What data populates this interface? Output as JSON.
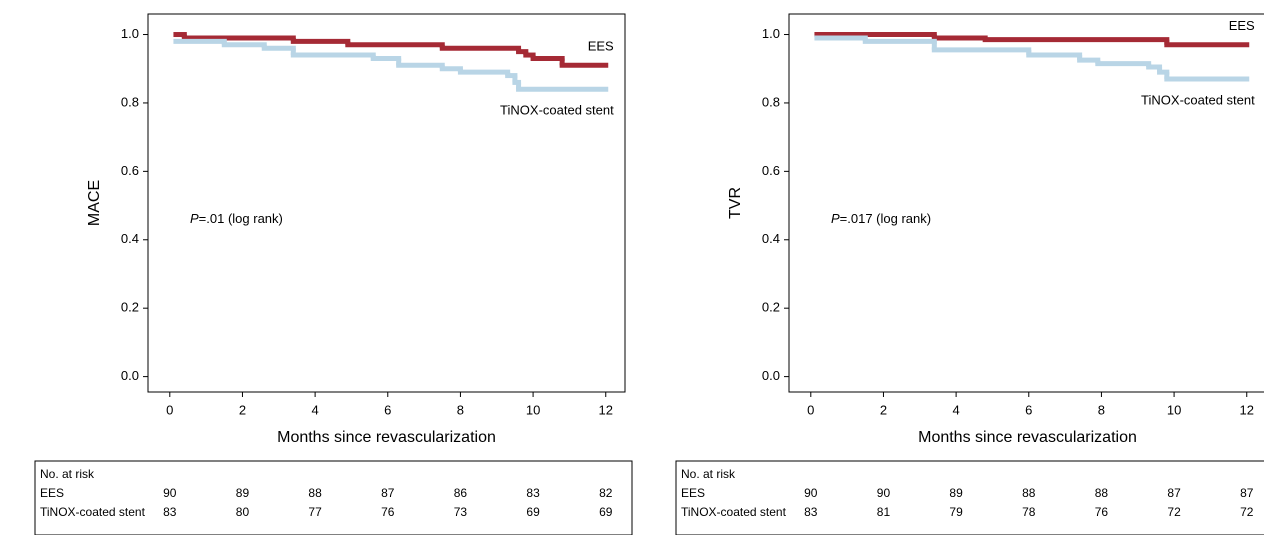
{
  "chart_data": [
    {
      "type": "step",
      "ylabel": "MACE",
      "xlabel": "Months since revascularization",
      "annotation": {
        "italic": "P",
        "text": "=.01 (log rank)"
      },
      "xlim": [
        -0.6,
        12.53
      ],
      "xticks": [
        0,
        2,
        4,
        6,
        8,
        10,
        12
      ],
      "ylim": [
        -0.045,
        1.06
      ],
      "yticks": [
        {
          "value": 0,
          "label": "0.0"
        },
        {
          "value": 0.2,
          "label": "0.2"
        },
        {
          "value": 0.4,
          "label": "0.4"
        },
        {
          "value": 0.6,
          "label": "0.6"
        },
        {
          "value": 0.8,
          "label": "0.8"
        },
        {
          "value": 1,
          "label": "1.0"
        }
      ],
      "series": [
        {
          "name": "EES",
          "color": "#a52a35",
          "x": [
            0.1,
            0.4,
            3.4,
            4.9,
            7.5,
            9.6,
            9.8,
            10.0,
            10.8,
            12
          ],
          "values": [
            1.0,
            0.99,
            0.98,
            0.97,
            0.96,
            0.95,
            0.94,
            0.93,
            0.91,
            0.91
          ]
        },
        {
          "name": "TiNOX-coated stent",
          "color": "#b9d5e6",
          "x": [
            0.1,
            1.5,
            2.6,
            3.4,
            5.6,
            6.3,
            7.5,
            8.0,
            9.3,
            9.5,
            9.6,
            12
          ],
          "values": [
            0.98,
            0.97,
            0.96,
            0.94,
            0.93,
            0.91,
            0.9,
            0.89,
            0.88,
            0.86,
            0.84,
            0.84
          ]
        }
      ],
      "risk_table": {
        "title": "No. at risk",
        "rows": [
          {
            "name": "EES",
            "values": [
              90,
              89,
              88,
              87,
              86,
              83,
              82
            ]
          },
          {
            "name": "TiNOX-coated stent",
            "values": [
              83,
              80,
              77,
              76,
              73,
              69,
              69
            ]
          }
        ]
      }
    },
    {
      "type": "step",
      "ylabel": "TVR",
      "xlabel": "Months since revascularization",
      "annotation": {
        "italic": "P",
        "text": "=.017 (log rank)"
      },
      "xlim": [
        -0.6,
        12.53
      ],
      "xticks": [
        0,
        2,
        4,
        6,
        8,
        10,
        12
      ],
      "ylim": [
        -0.045,
        1.06
      ],
      "yticks": [
        {
          "value": 0,
          "label": "0.0"
        },
        {
          "value": 0.2,
          "label": "0.2"
        },
        {
          "value": 0.4,
          "label": "0.4"
        },
        {
          "value": 0.6,
          "label": "0.6"
        },
        {
          "value": 0.8,
          "label": "0.8"
        },
        {
          "value": 1,
          "label": "1.0"
        }
      ],
      "series": [
        {
          "name": "EES",
          "color": "#a52a35",
          "x": [
            0.1,
            3.4,
            4.8,
            9.8,
            12
          ],
          "values": [
            1.0,
            0.99,
            0.985,
            0.97,
            0.97
          ]
        },
        {
          "name": "TiNOX-coated stent",
          "color": "#b9d5e6",
          "x": [
            0.1,
            1.5,
            3.4,
            6.0,
            7.4,
            7.9,
            9.3,
            9.6,
            9.8,
            12
          ],
          "values": [
            0.99,
            0.98,
            0.955,
            0.94,
            0.925,
            0.915,
            0.905,
            0.89,
            0.87,
            0.87
          ]
        }
      ],
      "risk_table": {
        "title": "No. at risk",
        "rows": [
          {
            "name": "EES",
            "values": [
              90,
              90,
              89,
              88,
              88,
              87,
              87
            ]
          },
          {
            "name": "TiNOX-coated stent",
            "values": [
              83,
              81,
              79,
              78,
              76,
              72,
              72
            ]
          }
        ]
      }
    }
  ]
}
